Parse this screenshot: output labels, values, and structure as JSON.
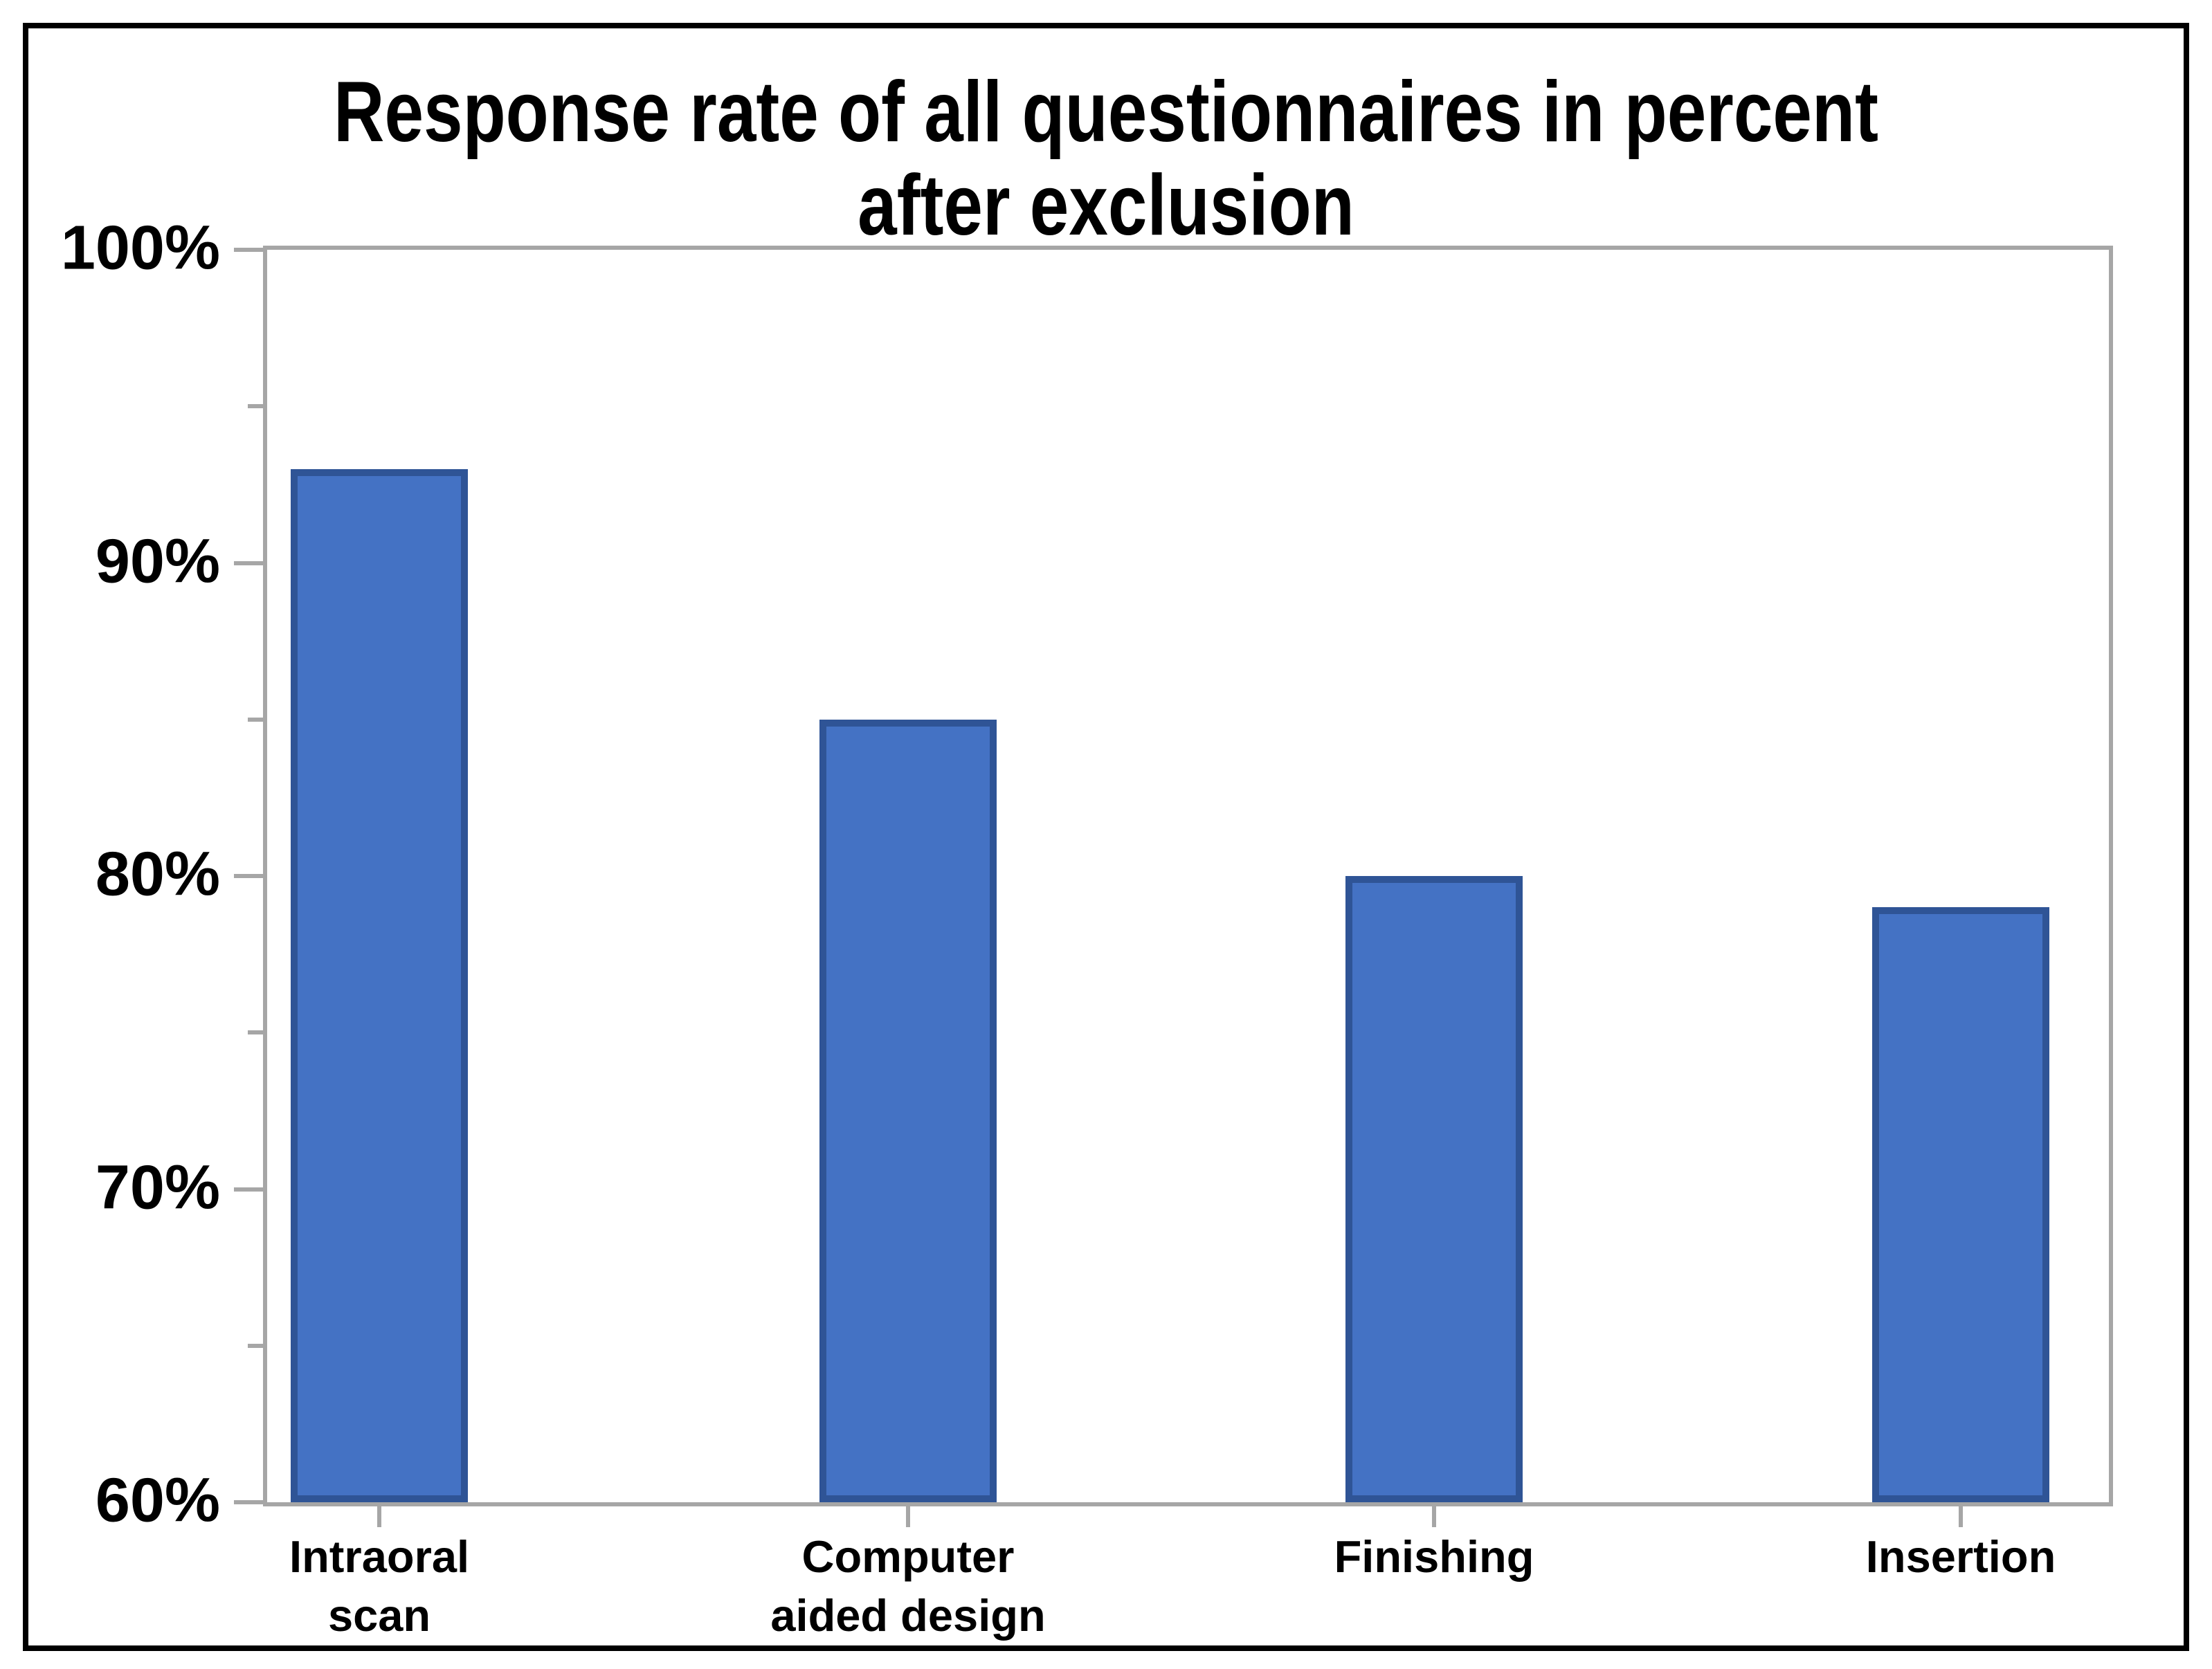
{
  "figure": {
    "background_color": "#FFFFFF",
    "border_color": "#000000"
  },
  "title": {
    "lines": [
      "Response rate of all questionnaires in percent",
      "after exclusion"
    ]
  },
  "chart_data": {
    "type": "bar",
    "title": "Response rate of all questionnaires in percent after exclusion",
    "categories": [
      "Intraoral\nscan",
      "Computer\naided design",
      "Finishing",
      "Insertion"
    ],
    "values": [
      93,
      85,
      80,
      79
    ],
    "unit": "%",
    "xlabel": "",
    "ylabel": "",
    "ylim": [
      60,
      100
    ],
    "y_major_ticks": [
      100,
      90,
      80,
      70,
      60
    ],
    "y_major_tick_labels": [
      "100%",
      "90%",
      "80%",
      "70%",
      "60%"
    ],
    "y_minor_ticks": [
      95,
      85,
      75,
      65
    ],
    "x_tick_at_each_bar_center": true,
    "grid": false,
    "legend": "none",
    "bar_fill_color": "#4472C4",
    "bar_border_color": "#2F5496",
    "axis_color": "#A6A6A6",
    "text_color": "#000000",
    "layout_hints": {
      "bar_centers_frac": [
        0.0609,
        0.348,
        0.6336,
        0.9196
      ],
      "bar_width_frac": 0.0962
    }
  }
}
